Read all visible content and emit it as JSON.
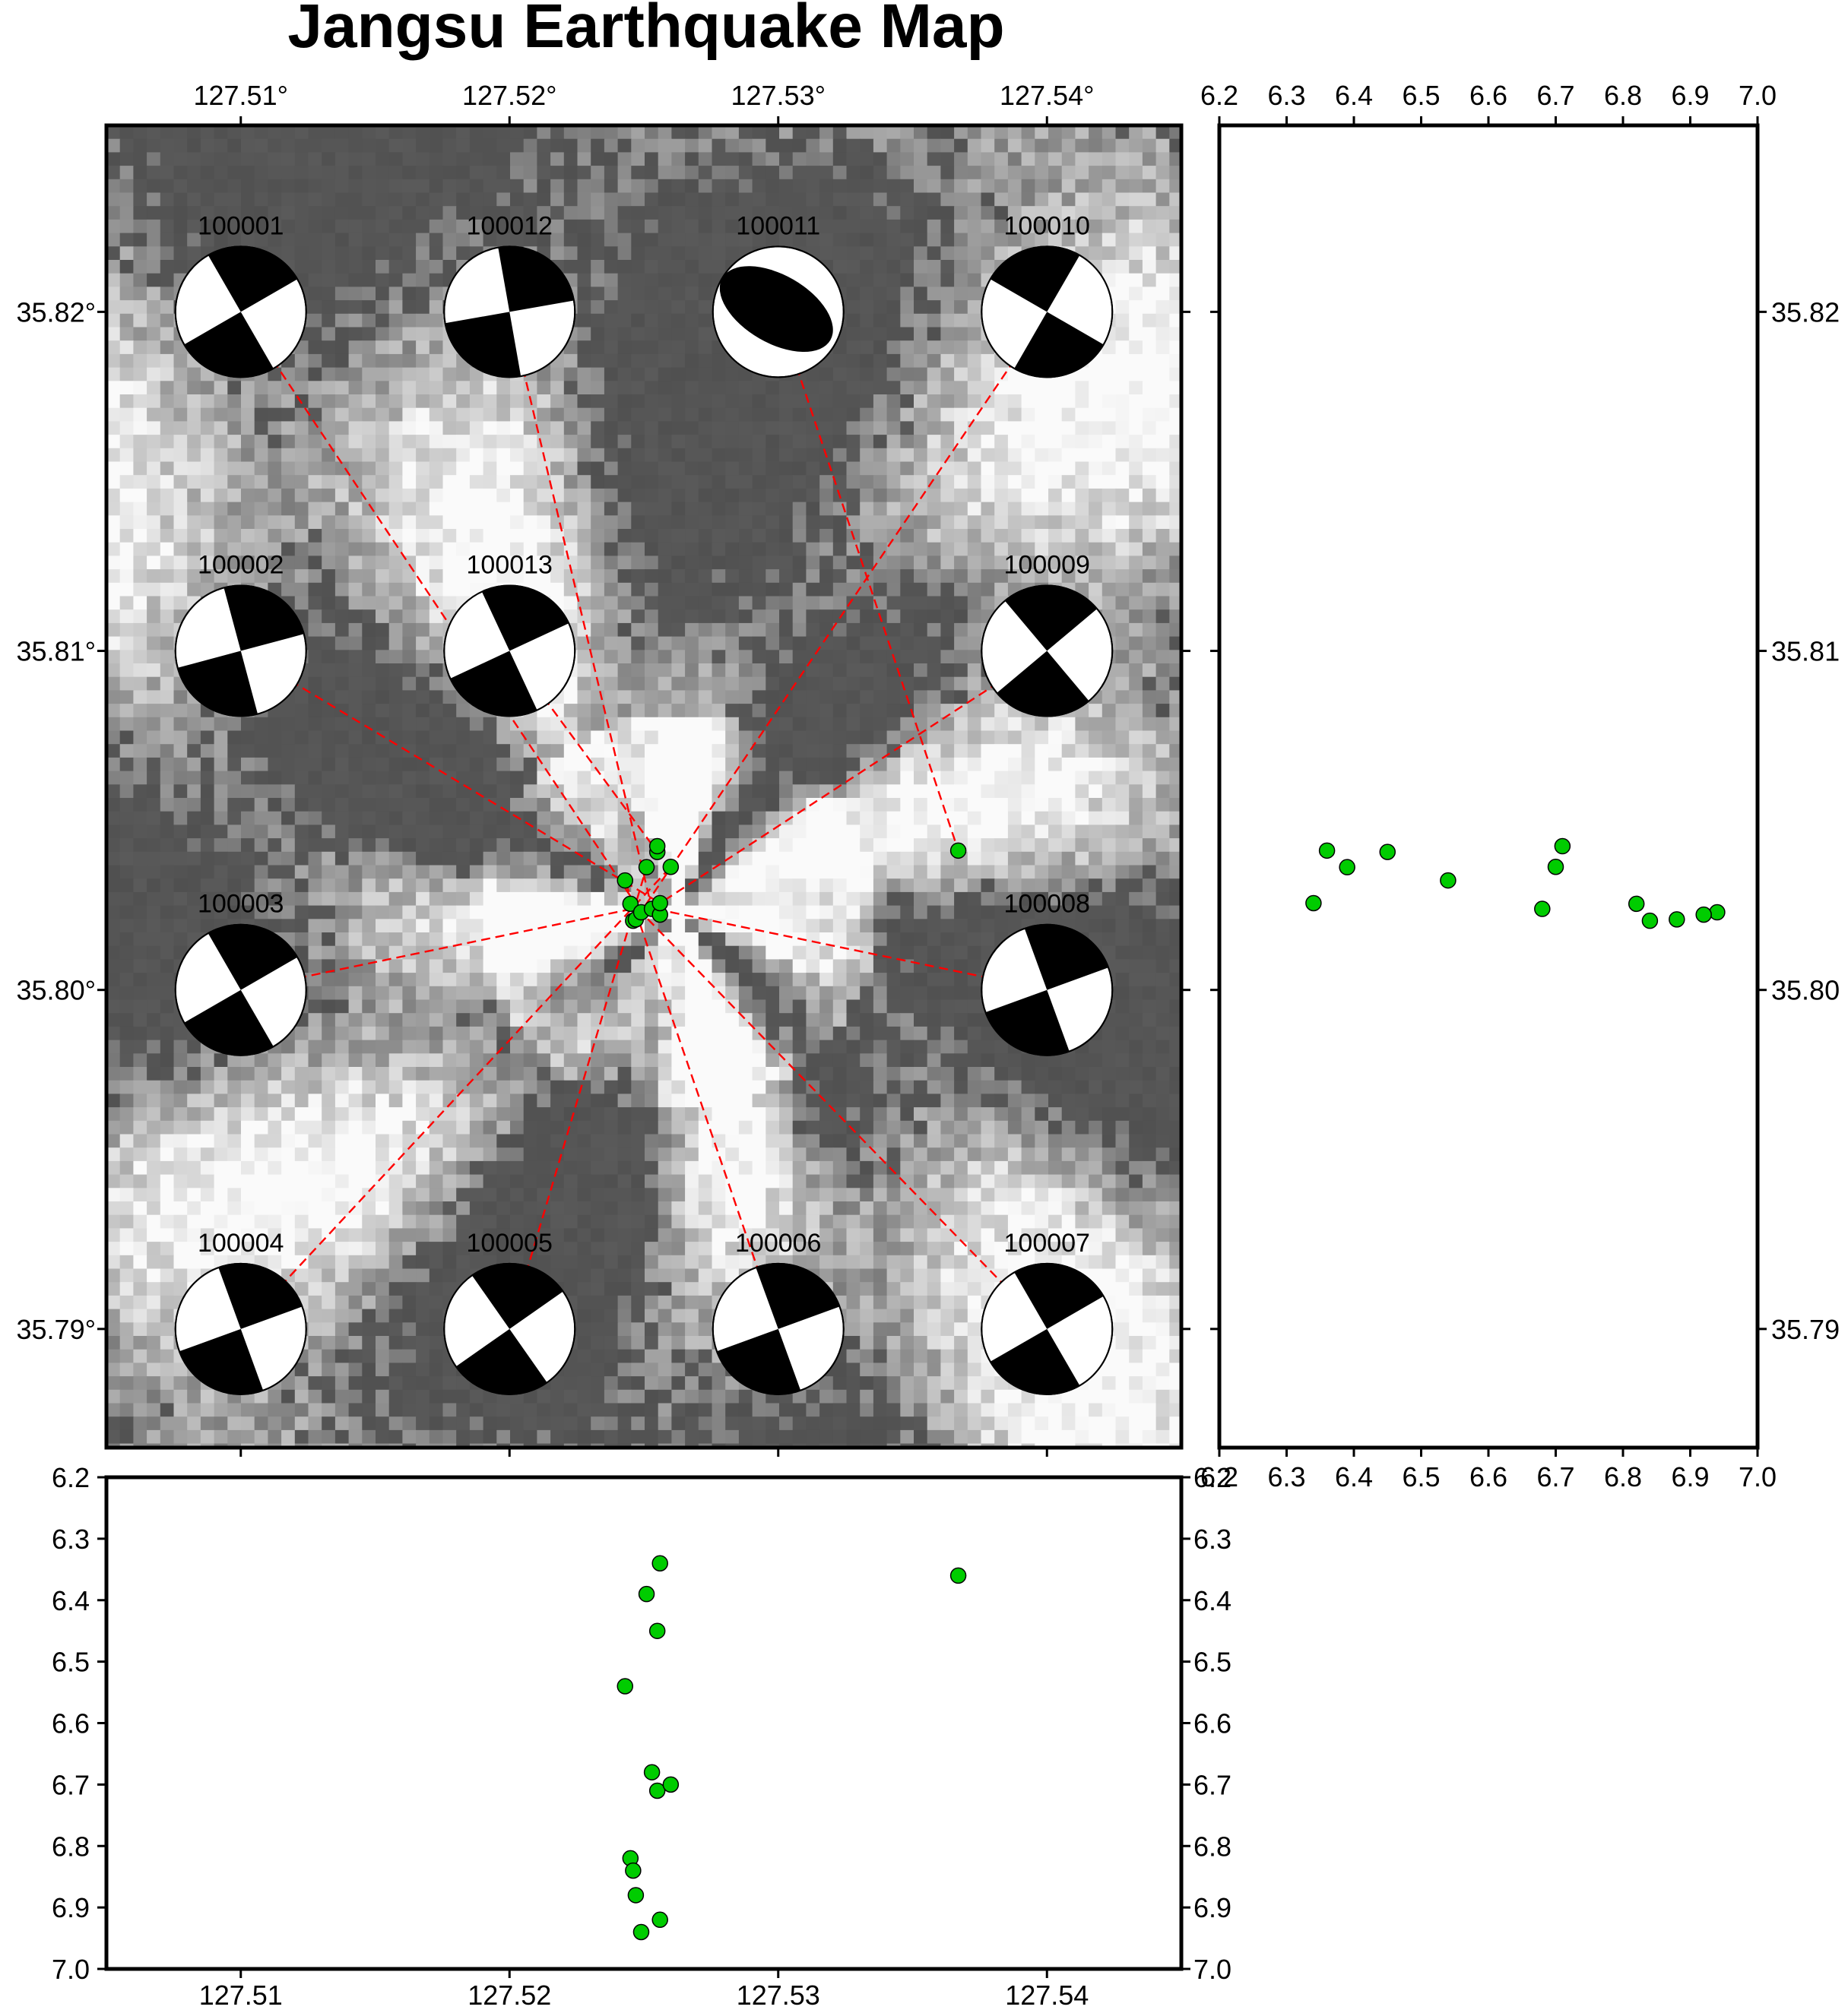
{
  "title": "Jangsu Earthquake Map",
  "colors": {
    "event": "#00cc00",
    "link_line": "#ff0000",
    "beachball_fill": "#000000",
    "frame": "#000000"
  },
  "map": {
    "lon_range": [
      127.505,
      127.545
    ],
    "lat_range": [
      35.7865,
      35.8255
    ],
    "lon_ticks": [
      "127.51°",
      "127.52°",
      "127.53°",
      "127.54°"
    ],
    "lat_ticks": [
      "35.79°",
      "35.80°",
      "35.81°",
      "35.82°"
    ]
  },
  "depth_panel_right": {
    "x_axis": "depth",
    "depth_range": [
      6.2,
      7.0
    ],
    "depth_ticks": [
      "6.2",
      "6.3",
      "6.4",
      "6.5",
      "6.6",
      "6.7",
      "6.8",
      "6.9",
      "7.0"
    ],
    "lat_ticks": [
      "35.79",
      "35.80",
      "35.81",
      "35.82"
    ]
  },
  "depth_panel_bottom": {
    "y_axis": "depth",
    "depth_ticks": [
      "6.2",
      "6.3",
      "6.4",
      "6.5",
      "6.6",
      "6.7",
      "6.8",
      "6.9",
      "7.0"
    ],
    "lon_ticks": [
      "127.51",
      "127.52",
      "127.53",
      "127.54"
    ]
  },
  "chart_data": {
    "type": "scatter",
    "events": [
      {
        "lon": 127.5243,
        "lat": 35.80323,
        "depth": 6.54
      },
      {
        "lon": 127.5245,
        "lat": 35.80254,
        "depth": 6.82
      },
      {
        "lon": 127.5246,
        "lat": 35.80204,
        "depth": 6.84
      },
      {
        "lon": 127.5247,
        "lat": 35.80208,
        "depth": 6.88
      },
      {
        "lon": 127.5249,
        "lat": 35.80229,
        "depth": 6.94
      },
      {
        "lon": 127.5251,
        "lat": 35.80362,
        "depth": 6.39
      },
      {
        "lon": 127.5253,
        "lat": 35.80239,
        "depth": 6.68
      },
      {
        "lon": 127.5255,
        "lat": 35.80407,
        "depth": 6.45
      },
      {
        "lon": 127.5255,
        "lat": 35.80424,
        "depth": 6.71
      },
      {
        "lon": 127.5256,
        "lat": 35.80222,
        "depth": 6.92
      },
      {
        "lon": 127.5256,
        "lat": 35.80256,
        "depth": 6.34
      },
      {
        "lon": 127.526,
        "lat": 35.80363,
        "depth": 6.7
      },
      {
        "lon": 127.5367,
        "lat": 35.80411,
        "depth": 6.36
      }
    ],
    "mechanisms": [
      {
        "id": "100001",
        "lon": 127.51,
        "lat": 35.82,
        "strike": 60,
        "link_to": 35.803,
        "dilat": false
      },
      {
        "id": "100012",
        "lon": 127.52,
        "lat": 35.82,
        "strike": 80,
        "dilat": false
      },
      {
        "id": "100011",
        "lon": 127.53,
        "lat": 35.82,
        "strike": 150,
        "dilat": true
      },
      {
        "id": "100010",
        "lon": 127.54,
        "lat": 35.82,
        "strike": 30,
        "dilat": false
      },
      {
        "id": "100002",
        "lon": 127.51,
        "lat": 35.81,
        "strike": 75,
        "dilat": false
      },
      {
        "id": "100013",
        "lon": 127.52,
        "lat": 35.81,
        "strike": 65,
        "dilat": false
      },
      {
        "id": "100009",
        "lon": 127.54,
        "lat": 35.81,
        "strike": 50,
        "dilat": false
      },
      {
        "id": "100003",
        "lon": 127.51,
        "lat": 35.8,
        "strike": 60,
        "dilat": false
      },
      {
        "id": "100008",
        "lon": 127.54,
        "lat": 35.8,
        "strike": 70,
        "dilat": false
      },
      {
        "id": "100004",
        "lon": 127.51,
        "lat": 35.79,
        "strike": 70,
        "dilat": false
      },
      {
        "id": "100005",
        "lon": 127.52,
        "lat": 35.79,
        "strike": 55,
        "dilat": false
      },
      {
        "id": "100006",
        "lon": 127.53,
        "lat": 35.79,
        "strike": 70,
        "dilat": false
      },
      {
        "id": "100007",
        "lon": 127.54,
        "lat": 35.79,
        "strike": 60,
        "dilat": false
      }
    ],
    "links": [
      {
        "from": "100001",
        "to_lon": 127.5249,
        "to_lat": 35.80229
      },
      {
        "from": "100012",
        "to_lon": 127.5253,
        "to_lat": 35.80239
      },
      {
        "from": "100011",
        "to_lon": 127.5367,
        "to_lat": 35.80411
      },
      {
        "from": "100010",
        "to_lon": 127.5247,
        "to_lat": 35.80208
      },
      {
        "from": "100002",
        "to_lon": 127.5256,
        "to_lat": 35.80256
      },
      {
        "from": "100013",
        "to_lon": 127.5255,
        "to_lat": 35.80407
      },
      {
        "from": "100009",
        "to_lon": 127.5246,
        "to_lat": 35.80204
      },
      {
        "from": "100003",
        "to_lon": 127.5256,
        "to_lat": 35.80256
      },
      {
        "from": "100008",
        "to_lon": 127.5245,
        "to_lat": 35.80254
      },
      {
        "from": "100004",
        "to_lon": 127.526,
        "to_lat": 35.80363
      },
      {
        "from": "100005",
        "to_lon": 127.5251,
        "to_lat": 35.80362
      },
      {
        "from": "100006",
        "to_lon": 127.5243,
        "to_lat": 35.80323
      },
      {
        "from": "100007",
        "to_lon": 127.5249,
        "to_lat": 35.80229
      }
    ]
  }
}
